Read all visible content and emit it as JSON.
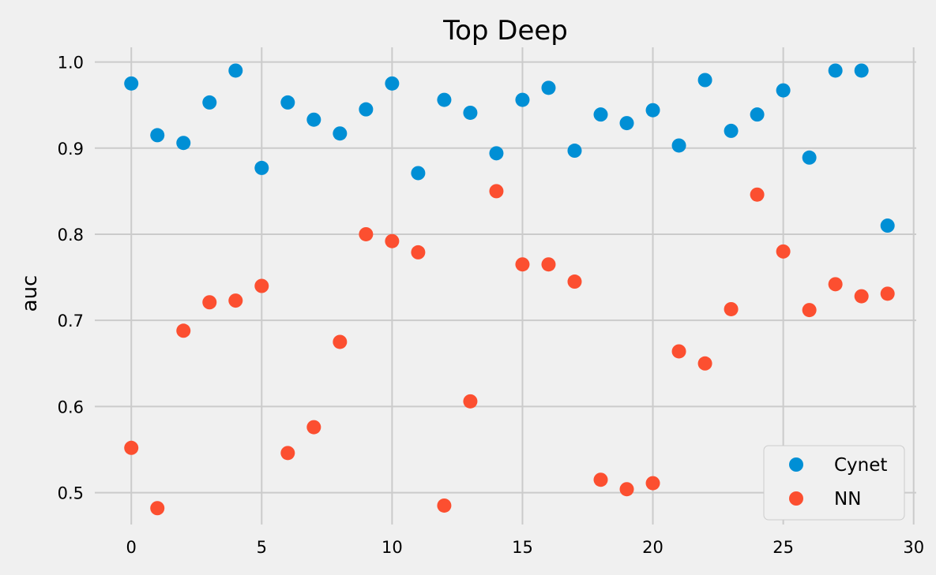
{
  "chart_data": {
    "type": "scatter",
    "title": "Top Deep",
    "xlabel": "",
    "ylabel": "auc",
    "xlim": [
      -1.4,
      30.1
    ],
    "ylim": [
      0.463,
      1.017
    ],
    "xticks": [
      0,
      5,
      10,
      15,
      20,
      25,
      30
    ],
    "xtick_labels": [
      "0",
      "5",
      "10",
      "15",
      "20",
      "25",
      "30"
    ],
    "yticks": [
      0.5,
      0.6,
      0.7,
      0.8,
      0.9,
      1.0
    ],
    "ytick_labels": [
      "0.5",
      "0.6",
      "0.7",
      "0.8",
      "0.9",
      "1.0"
    ],
    "grid": true,
    "legend_position": "bottom-right",
    "x": [
      0,
      1,
      2,
      3,
      4,
      5,
      6,
      7,
      8,
      9,
      10,
      11,
      12,
      13,
      14,
      15,
      16,
      17,
      18,
      19,
      20,
      21,
      22,
      23,
      24,
      25,
      26,
      27,
      28,
      29
    ],
    "series": [
      {
        "name": "Cynet",
        "color": "#008fd5",
        "values": [
          0.975,
          0.915,
          0.906,
          0.953,
          0.99,
          0.877,
          0.953,
          0.933,
          0.917,
          0.945,
          0.975,
          0.871,
          0.956,
          0.941,
          0.894,
          0.956,
          0.97,
          0.897,
          0.939,
          0.929,
          0.944,
          0.903,
          0.979,
          0.92,
          0.939,
          0.967,
          0.889,
          0.99,
          0.99,
          0.81
        ]
      },
      {
        "name": "NN",
        "color": "#fc4f30",
        "values": [
          0.552,
          0.482,
          0.688,
          0.721,
          0.723,
          0.74,
          0.546,
          0.576,
          0.675,
          0.8,
          0.792,
          0.779,
          0.485,
          0.606,
          0.85,
          0.765,
          0.765,
          0.745,
          0.515,
          0.504,
          0.511,
          0.664,
          0.65,
          0.713,
          0.846,
          0.78,
          0.712,
          0.742,
          0.728,
          0.731
        ]
      }
    ]
  }
}
